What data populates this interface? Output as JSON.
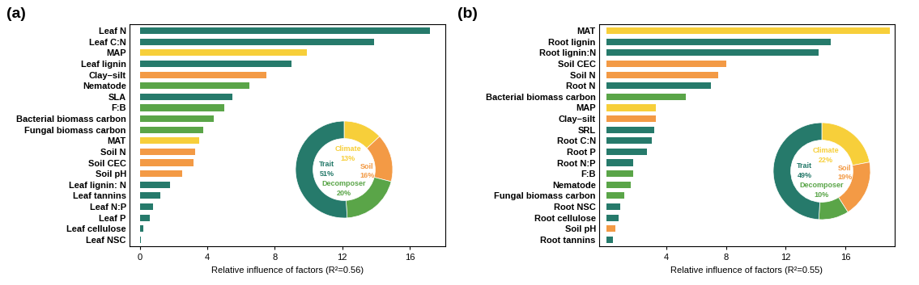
{
  "chart_data": [
    {
      "type": "bar",
      "orientation": "horizontal",
      "panel_label": "(a)",
      "x_label": "Relative influence of factors (R²=0.56)",
      "categories": [
        "Leaf N",
        "Leaf C:N",
        "MAP",
        "Leaf lignin",
        "Clay–silt",
        "Nematode",
        "SLA",
        "F:B",
        "Bacterial biomass carbon",
        "Fungal biomass carbon",
        "MAT",
        "Soil N",
        "Soil CEC",
        "Soil pH",
        "Leaf lignin: N",
        "Leaf tannins",
        "Leaf N:P",
        "Leaf P",
        "Leaf cellulose",
        "Leaf NSC"
      ],
      "values": [
        17.2,
        13.9,
        9.9,
        9.0,
        7.5,
        6.5,
        5.5,
        5.0,
        4.4,
        3.75,
        3.5,
        3.3,
        3.2,
        2.5,
        1.8,
        1.2,
        0.8,
        0.6,
        0.2,
        0.05
      ],
      "colors": [
        "#267a6b",
        "#267a6b",
        "#f7cf3a",
        "#267a6b",
        "#f39a45",
        "#5aa548",
        "#267a6b",
        "#5aa548",
        "#5aa548",
        "#5aa548",
        "#f7cf3a",
        "#f39a45",
        "#f39a45",
        "#f39a45",
        "#267a6b",
        "#267a6b",
        "#267a6b",
        "#267a6b",
        "#267a6b",
        "#267a6b"
      ],
      "xlim": [
        -0.6,
        18.1
      ],
      "xticks": [
        0,
        4,
        8,
        12,
        16
      ],
      "inset": {
        "type": "pie",
        "categories": [
          "Climate",
          "Soil",
          "Decomposer",
          "Trait"
        ],
        "values": [
          13,
          16,
          20,
          51
        ],
        "value_labels": [
          "13%",
          "16%",
          "20%",
          "51%"
        ],
        "colors": [
          "#f7cf3a",
          "#f39a45",
          "#5aa548",
          "#267a6b"
        ]
      }
    },
    {
      "type": "bar",
      "orientation": "horizontal",
      "panel_label": "(b)",
      "x_label": "Relative influence of factors (R²=0.55)",
      "categories": [
        "MAT",
        "Root lignin",
        "Root lignin:N",
        "Soil CEC",
        "Soil N",
        "Root N",
        "Bacterial biomass carbon",
        "MAP",
        "Clay–silt",
        "SRL",
        "Root C:N",
        "Root P",
        "Root N:P",
        "F:B",
        "Nematode",
        "Fungal biomass carbon",
        "Root NSC",
        "Root cellulose",
        "Soil pH",
        "Root tannins"
      ],
      "values": [
        19.0,
        15.0,
        14.2,
        8.0,
        7.5,
        7.0,
        5.3,
        3.3,
        3.3,
        3.2,
        3.0,
        2.7,
        1.8,
        1.8,
        1.6,
        1.2,
        0.9,
        0.8,
        0.6,
        0.4
      ],
      "colors": [
        "#f7cf3a",
        "#267a6b",
        "#267a6b",
        "#f39a45",
        "#f39a45",
        "#267a6b",
        "#5aa548",
        "#f7cf3a",
        "#f39a45",
        "#267a6b",
        "#267a6b",
        "#267a6b",
        "#267a6b",
        "#5aa548",
        "#5aa548",
        "#5aa548",
        "#267a6b",
        "#267a6b",
        "#f39a45",
        "#267a6b"
      ],
      "xlim": [
        -0.5,
        19.3
      ],
      "xticks": [
        4,
        8,
        12,
        16
      ],
      "inset": {
        "type": "pie",
        "categories": [
          "Climate",
          "Soil",
          "Decomposer",
          "Trait"
        ],
        "values": [
          22,
          19,
          10,
          49
        ],
        "value_labels": [
          "22%",
          "19%",
          "10%",
          "49%"
        ],
        "colors": [
          "#f7cf3a",
          "#f39a45",
          "#5aa548",
          "#267a6b"
        ]
      }
    }
  ]
}
